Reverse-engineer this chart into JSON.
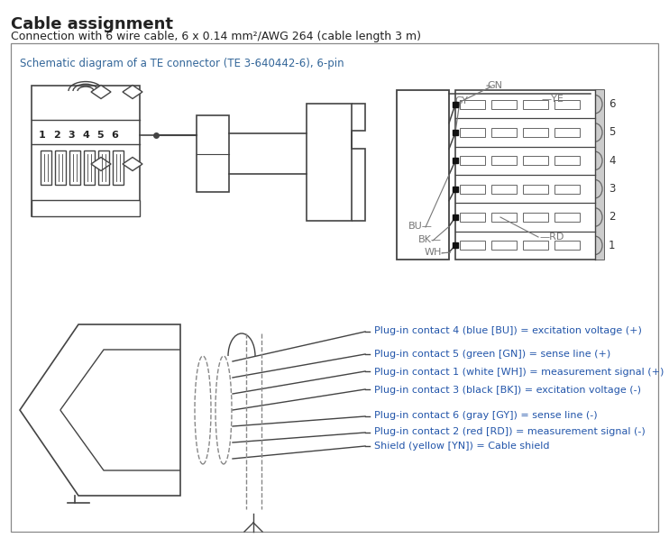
{
  "title": "Cable assignment",
  "subtitle": "Connection with 6 wire cable, 6 x 0.14 mm²/AWG 264 (cable length 3 m)",
  "box_label": "Schematic diagram of a TE connector (TE 3-640442-6), 6-pin",
  "contact_lines": [
    "Plug-in contact 4 (blue [BU]) = excitation voltage (+)",
    "Plug-in contact 5 (green [GN]) = sense line (+)",
    "Plug-in contact 1 (white [WH]) = measurement signal (+)",
    "Plug-in contact 3 (black [BK]) = excitation voltage (-)",
    "Plug-in contact 6 (gray [GY]) = sense line (-)",
    "Plug-in contact 2 (red [RD]) = measurement signal (-)",
    "Shield (yellow [YN]) = Cable shield"
  ],
  "bg_color": "#ffffff",
  "text_color": "#222222",
  "blue_text_color": "#2255aa",
  "box_label_color": "#336699",
  "line_color": "#444444",
  "pin_number_color": "#222222"
}
